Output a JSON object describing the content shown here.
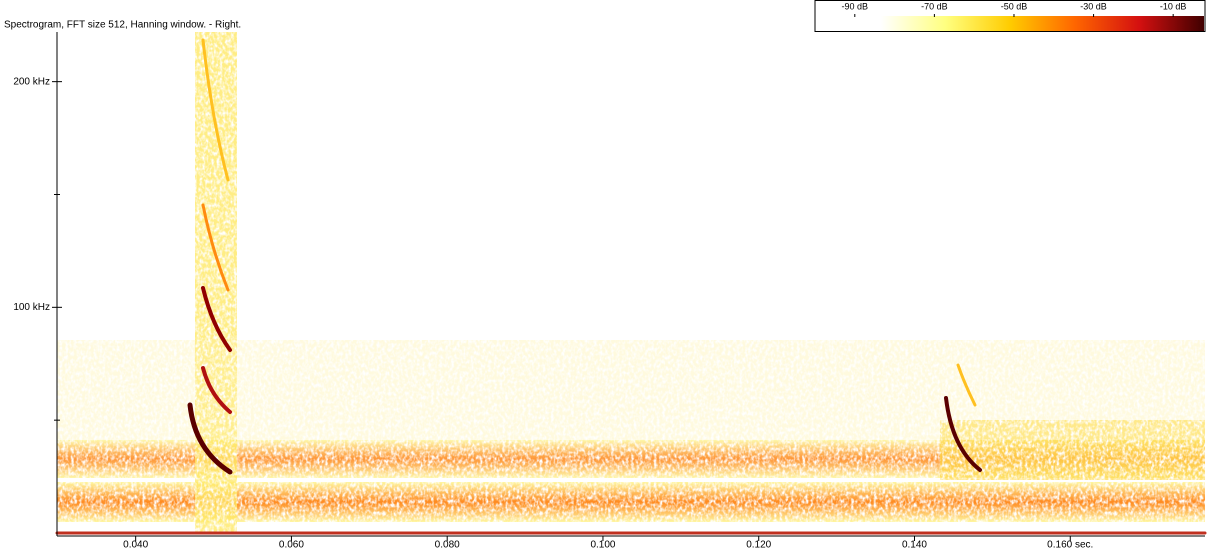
{
  "chart_data": {
    "type": "spectrogram",
    "title": "Spectrogram, FFT size 512, Hanning window. - Right.",
    "xlim": [
      0.0299,
      0.1773
    ],
    "xticks": [
      {
        "value": 0.04,
        "label": "0.040"
      },
      {
        "value": 0.06,
        "label": "0.060"
      },
      {
        "value": 0.08,
        "label": "0.080"
      },
      {
        "value": 0.1,
        "label": "0.100"
      },
      {
        "value": 0.12,
        "label": "0.120"
      },
      {
        "value": 0.14,
        "label": "0.140"
      },
      {
        "value": 0.16,
        "label": "0.160 sec."
      }
    ],
    "ylim": [
      0,
      222
    ],
    "yticks": [
      {
        "value": 100,
        "label": "100 kHz"
      },
      {
        "value": 200,
        "label": "200 kHz"
      }
    ],
    "minor_yticks": [
      50,
      150
    ],
    "colorbar": {
      "lim": [
        -100,
        -2
      ],
      "ticks": [
        {
          "value": -90,
          "label": "-90 dB"
        },
        {
          "value": -70,
          "label": "-70 dB"
        },
        {
          "value": -50,
          "label": "-50 dB"
        },
        {
          "value": -30,
          "label": "-30 dB"
        },
        {
          "value": -10,
          "label": "-10 dB"
        }
      ],
      "colors": [
        "#ffffff",
        "#ffffff",
        "#ffff80",
        "#ffcc00",
        "#ff6600",
        "#d41010",
        "#400000"
      ]
    }
  }
}
